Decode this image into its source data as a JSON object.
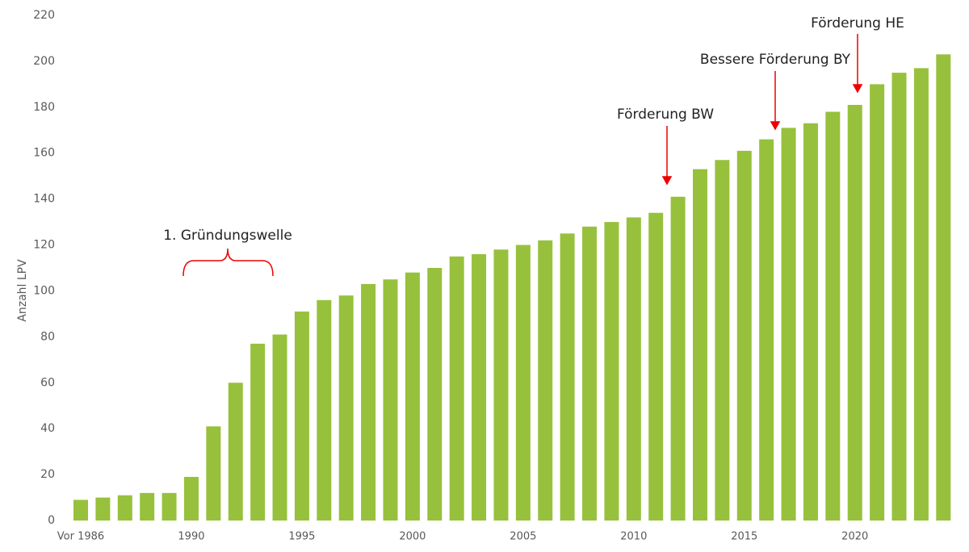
{
  "chart_data": {
    "type": "bar",
    "y_label": "Anzahl LPV",
    "categories": [
      "Vor 1986",
      null,
      null,
      null,
      null,
      "1990",
      null,
      null,
      null,
      null,
      "1995",
      null,
      null,
      null,
      null,
      "2000",
      null,
      null,
      null,
      null,
      "2005",
      null,
      null,
      null,
      null,
      "2010",
      null,
      null,
      null,
      null,
      "2015",
      null,
      null,
      null,
      null,
      "2020",
      null,
      null,
      null,
      null
    ],
    "values": [
      9,
      10,
      11,
      12,
      12,
      19,
      41,
      60,
      77,
      81,
      91,
      96,
      98,
      103,
      105,
      108,
      110,
      115,
      116,
      118,
      120,
      122,
      125,
      128,
      130,
      132,
      134,
      141,
      153,
      157,
      161,
      166,
      171,
      173,
      178,
      181,
      190,
      195,
      197,
      203
    ],
    "color": "#97c13c",
    "ylim": [
      0,
      220
    ],
    "yticks": [
      0,
      20,
      40,
      60,
      80,
      100,
      120,
      140,
      160,
      180,
      200,
      220
    ],
    "grid": false,
    "annotations": [
      "1. Gründungswelle",
      "Förderung BW",
      "Bessere Förderung BY",
      "Förderung HE"
    ]
  }
}
